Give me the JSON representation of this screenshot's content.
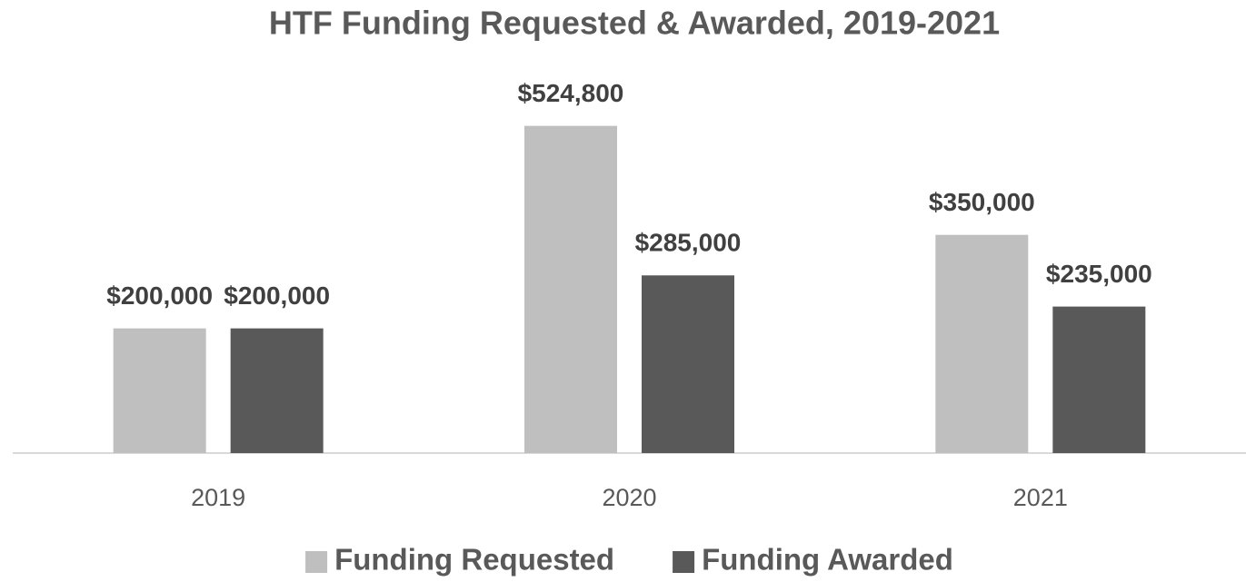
{
  "chart_data": {
    "type": "bar",
    "title": "HTF Funding Requested & Awarded, 2019-2021",
    "categories": [
      "2019",
      "2020",
      "2021"
    ],
    "series": [
      {
        "name": "Funding Requested",
        "color": "#bfbfbf",
        "values": [
          200000,
          524800,
          350000
        ],
        "value_labels": [
          "$200,000",
          "$524,800",
          "$350,000"
        ]
      },
      {
        "name": "Funding Awarded",
        "color": "#595959",
        "values": [
          200000,
          285000,
          235000
        ],
        "value_labels": [
          "$200,000",
          "$285,000",
          "$235,000"
        ]
      }
    ],
    "ylim": [
      0,
      600000
    ],
    "grid": false,
    "legend": "bottom"
  }
}
